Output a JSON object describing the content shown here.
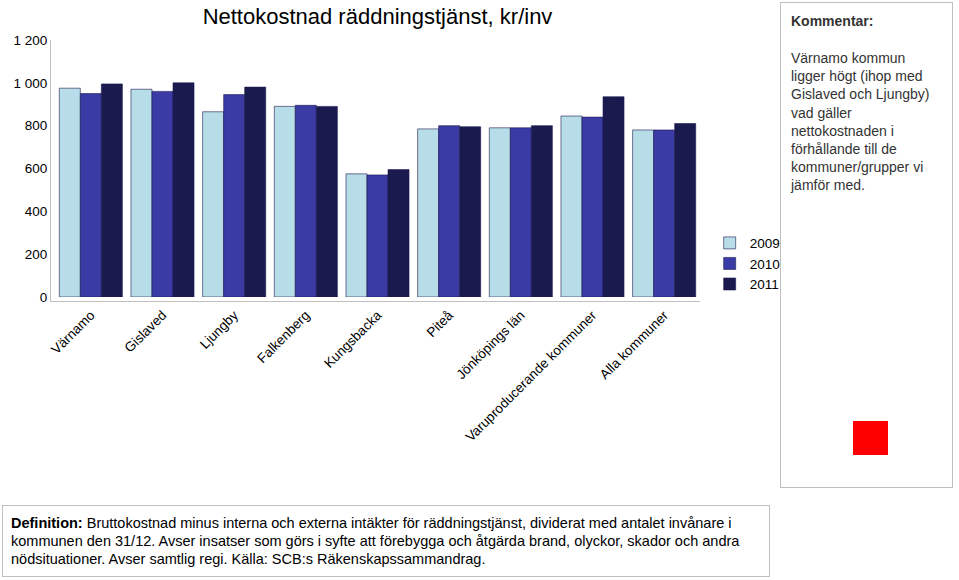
{
  "chart_data": {
    "type": "bar",
    "title": "Nettokostnad räddningstjänst, kr/inv",
    "categories": [
      "Värnamo",
      "Gislaved",
      "Ljungby",
      "Falkenberg",
      "Kungsbacka",
      "Piteå",
      "Jönköpings län",
      "Varuproducerande kommuner",
      "Alla kommuner"
    ],
    "series": [
      {
        "name": "2009",
        "color": "#b7dde8",
        "values": [
          975,
          970,
          865,
          890,
          575,
          785,
          790,
          845,
          780
        ]
      },
      {
        "name": "2010",
        "color": "#3b3ba6",
        "values": [
          950,
          960,
          945,
          895,
          570,
          800,
          790,
          840,
          780
        ]
      },
      {
        "name": "2011",
        "color": "#1b1a4f",
        "values": [
          995,
          1000,
          980,
          890,
          595,
          795,
          800,
          935,
          810
        ]
      }
    ],
    "ylim": [
      0,
      1200
    ],
    "yticks": [
      0,
      200,
      400,
      600,
      800,
      {
        "value": 1000,
        "label": "1 000"
      },
      {
        "value": 1200,
        "label": "1 200"
      }
    ],
    "grid": false,
    "legend": "right",
    "annotations": [
      {
        "heading": "Kommentar:",
        "text": "Värnamo kommun ligger högt (ihop med Gislaved och Ljungby) vad gäller nettokostnaden i förhållande till de kommuner/grupper vi jämför med."
      },
      {
        "heading": "Definition:",
        "text": "Bruttokostnad minus interna och externa intäkter för räddningstjänst, dividerat med antalet invånare i kommunen den 31/12. Avser insatser som görs i syfte att förebygga och åtgärda brand, olyckor, skador och andra nödsituationer. Avser samtlig regi. Källa: SCB:s Räkenskapssammandrag."
      }
    ]
  }
}
